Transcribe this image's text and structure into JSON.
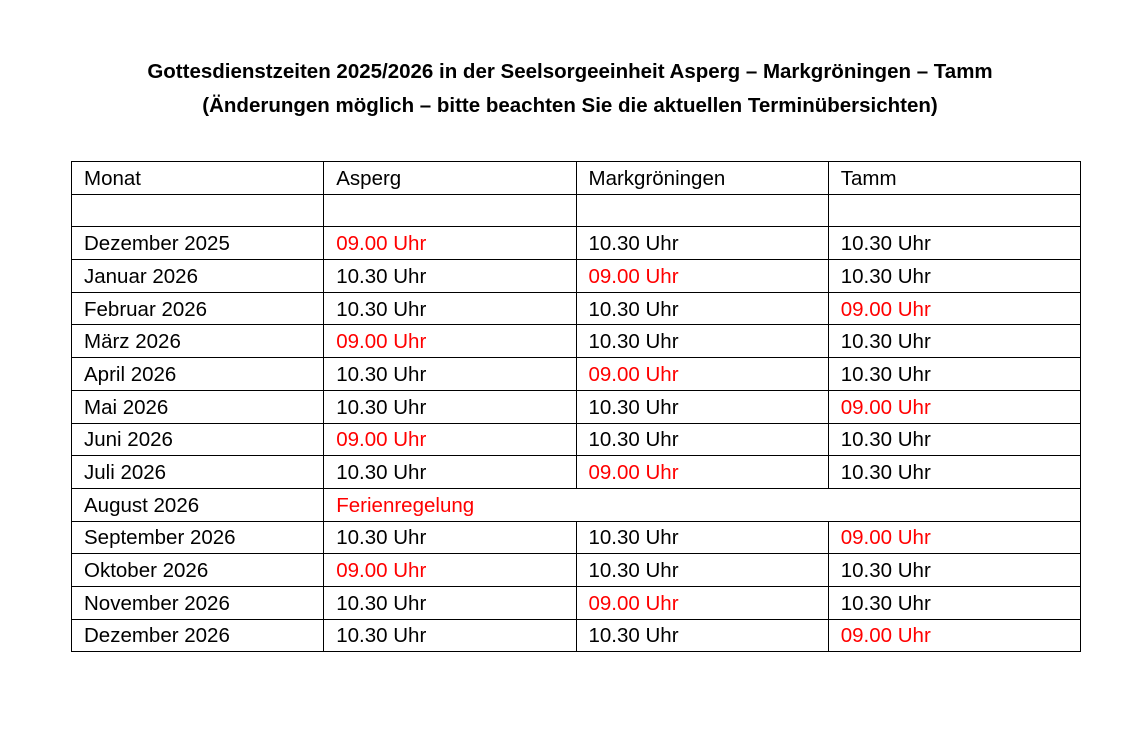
{
  "title": {
    "line1": "Gottesdienstzeiten 2025/2026 in der Seelsorgeeinheit Asperg – Markgröningen – Tamm",
    "line2": "(Änderungen möglich – bitte beachten Sie die aktuellen Terminübersichten)"
  },
  "colors": {
    "highlight": "#ff0000",
    "text": "#000000"
  },
  "table": {
    "headers": [
      "Monat",
      "Asperg",
      "Markgröningen",
      "Tamm"
    ],
    "rows": [
      {
        "month": "",
        "times": [
          "",
          "",
          ""
        ],
        "highlight": -1
      },
      {
        "month": "Dezember 2025",
        "times": [
          "09.00 Uhr",
          "10.30 Uhr",
          "10.30 Uhr"
        ],
        "highlight": 0
      },
      {
        "month": "Januar 2026",
        "times": [
          "10.30 Uhr",
          "09.00 Uhr",
          "10.30 Uhr"
        ],
        "highlight": 1
      },
      {
        "month": "Februar 2026",
        "times": [
          "10.30 Uhr",
          "10.30 Uhr",
          "09.00 Uhr"
        ],
        "highlight": 2
      },
      {
        "month": "März 2026",
        "times": [
          "09.00 Uhr",
          "10.30 Uhr",
          "10.30 Uhr"
        ],
        "highlight": 0
      },
      {
        "month": "April 2026",
        "times": [
          "10.30 Uhr",
          "09.00 Uhr",
          "10.30 Uhr"
        ],
        "highlight": 1
      },
      {
        "month": "Mai 2026",
        "times": [
          "10.30 Uhr",
          "10.30 Uhr",
          "09.00 Uhr"
        ],
        "highlight": 2
      },
      {
        "month": "Juni 2026",
        "times": [
          "09.00 Uhr",
          "10.30 Uhr",
          "10.30 Uhr"
        ],
        "highlight": 0
      },
      {
        "month": "Juli 2026",
        "times": [
          "10.30 Uhr",
          "09.00 Uhr",
          "10.30 Uhr"
        ],
        "highlight": 1
      },
      {
        "month": "August 2026",
        "note": "Ferienregelung"
      },
      {
        "month": "September 2026",
        "times": [
          "10.30 Uhr",
          "10.30 Uhr",
          "09.00 Uhr"
        ],
        "highlight": 2
      },
      {
        "month": "Oktober 2026",
        "times": [
          "09.00 Uhr",
          "10.30 Uhr",
          "10.30 Uhr"
        ],
        "highlight": 0
      },
      {
        "month": "November 2026",
        "times": [
          "10.30 Uhr",
          "09.00 Uhr",
          "10.30 Uhr"
        ],
        "highlight": 1
      },
      {
        "month": "Dezember 2026",
        "times": [
          "10.30 Uhr",
          "10.30 Uhr",
          "09.00 Uhr"
        ],
        "highlight": 2
      }
    ]
  }
}
